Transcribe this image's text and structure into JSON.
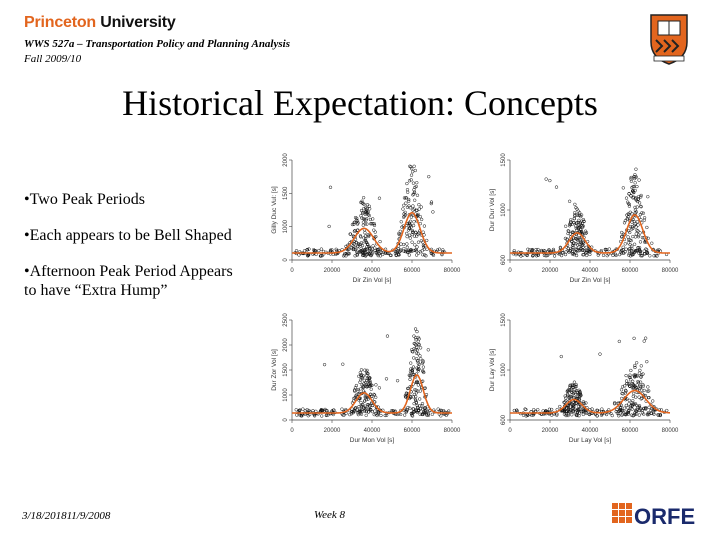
{
  "header": {
    "logo_part1": "Princeton",
    "logo_part2": "University",
    "course": "WWS 527a – Transportation Policy and Planning Analysis",
    "term": "Fall 2009/10"
  },
  "title": "Historical Expectation: Concepts",
  "bullets": [
    "•Two Peak Periods",
    "•Each appears to be Bell Shaped",
    "•Afternoon Peak Period Appears to have “Extra Hump”"
  ],
  "footer": {
    "date": "3/18/201811/9/2008",
    "week": "Week 8",
    "logo_text": "ORFE"
  },
  "colors": {
    "princeton_orange": "#e2651e",
    "plot_line": "#e2651e"
  },
  "plots": [
    {
      "ylabel": "Gilly Duc Vul: [s]",
      "xlabel": "Dir Zin Vol [s]",
      "xticks": [
        "0",
        "20000",
        "40000",
        "60000",
        "80000"
      ],
      "yticks": [
        "0",
        "1000",
        "1500",
        "2000"
      ]
    },
    {
      "ylabel": "Dur Dur Vol [s]",
      "xlabel": "Dur Zin Vol [s]",
      "xticks": [
        "0",
        "20000",
        "40000",
        "60000",
        "80000"
      ],
      "yticks": [
        "600",
        "1000",
        "1500"
      ]
    },
    {
      "ylabel": "Dur Zor Vol [s]",
      "xlabel": "Dur Mon Vol [s]",
      "xticks": [
        "0",
        "20000",
        "40000",
        "60000",
        "80000"
      ],
      "yticks": [
        "0",
        "1000",
        "1500",
        "2000",
        "2500"
      ]
    },
    {
      "ylabel": "Dur Lay Vol [s]",
      "xlabel": "Dur Lay Vol [s]",
      "xticks": [
        "0",
        "20000",
        "40000",
        "60000",
        "80000"
      ],
      "yticks": [
        "600",
        "1000",
        "1500"
      ]
    }
  ]
}
